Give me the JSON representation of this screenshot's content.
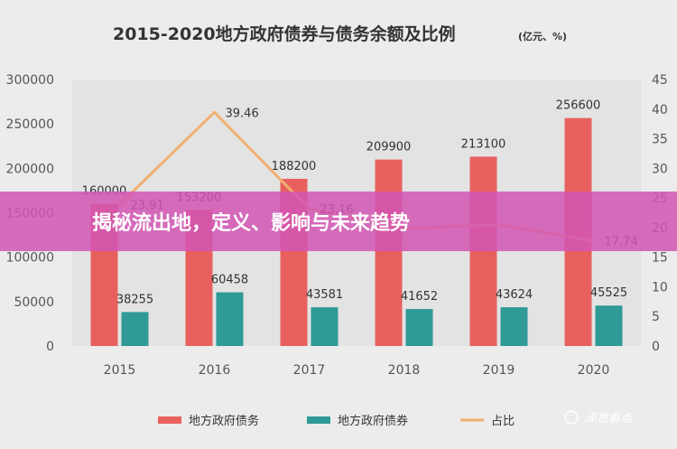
{
  "chart_data": {
    "type": "bar",
    "title": "2015-2020地方政府债券与债务余额及比例",
    "title_unit": "(亿元、%)",
    "categories": [
      "2015",
      "2016",
      "2017",
      "2018",
      "2019",
      "2020"
    ],
    "series": [
      {
        "name": "地方政府债务",
        "type": "bar",
        "axis": "left",
        "color": "#e8605d",
        "values": [
          160000,
          153200,
          188200,
          209900,
          213100,
          256600
        ]
      },
      {
        "name": "地方政府债券",
        "type": "bar",
        "axis": "left",
        "color": "#2f9a96",
        "values": [
          38255,
          60458,
          43581,
          41652,
          43624,
          45525
        ]
      },
      {
        "name": "占比",
        "type": "line",
        "axis": "right",
        "color": "#f0b070",
        "values": [
          23.91,
          39.46,
          23.16,
          19.84,
          20.47,
          17.74
        ]
      }
    ],
    "line_labels_visible": [
      "23.91",
      "39.46",
      "23.16",
      "",
      "",
      "17.74"
    ],
    "y_left": {
      "min": 0,
      "max": 300000,
      "ticks": [
        "0",
        "50000",
        "100000",
        "150000",
        "200000",
        "250000",
        "300000"
      ]
    },
    "y_right": {
      "min": 0,
      "max": 45,
      "ticks": [
        "0",
        "5",
        "10",
        "15",
        "20",
        "25",
        "30",
        "35",
        "40",
        "45"
      ]
    },
    "grid": false,
    "legend_position": "bottom"
  },
  "overlay": {
    "banner_text": "揭秘流出地，定义、影响与未来趋势",
    "banner_color": "#d255b4",
    "watermark_text": "泽世看点"
  }
}
